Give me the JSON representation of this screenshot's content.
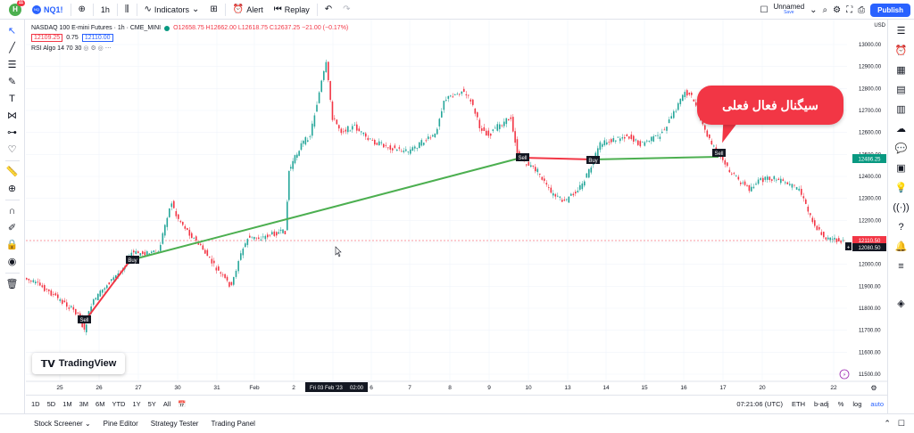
{
  "topbar": {
    "avatar_letter": "H",
    "avatar_badge": "11",
    "symbol_icon": "NQ",
    "symbol": "NQ1!",
    "interval": "1h",
    "indicators_label": "Indicators",
    "alert_label": "Alert",
    "replay_label": "Replay",
    "layout_name": "Unnamed",
    "layout_status": "Save",
    "publish_label": "Publish"
  },
  "legend": {
    "title": "NASDAQ 100 E-mini Futures · 1h · CME_MINI",
    "ohlc": "O12658.75 H12662.00 L12618.75 C12637.25 −21.00 (−0.17%)",
    "bid": "12109.25",
    "spread": "0.75",
    "ask": "12110.00",
    "indicator": "RSI Algo 14 70 30"
  },
  "price_axis": {
    "currency": "USD",
    "ticks": [
      "13000.00",
      "12900.00",
      "12800.00",
      "12700.00",
      "12600.00",
      "12500.00",
      "12400.00",
      "12300.00",
      "12200.00",
      "12100.00",
      "12000.00",
      "11900.00",
      "11800.00",
      "11700.00",
      "11600.00",
      "11500.00"
    ],
    "tag_green": "12486.25",
    "tag_red": "12110.50",
    "tag_dark": "12080.50"
  },
  "time_axis": {
    "labels": [
      "25",
      "26",
      "27",
      "30",
      "31",
      "Feb",
      "2",
      "3",
      "6",
      "7",
      "8",
      "9",
      "10",
      "13",
      "14",
      "15",
      "16",
      "17",
      "20",
      "22"
    ],
    "cursor_label": "Fri 03 Feb '23",
    "cursor_time": "02:00"
  },
  "signals": {
    "bubble_text": "سیگنال فعال فعلی",
    "buy": "Buy",
    "sell": "Sell"
  },
  "watermark": "TradingView",
  "rangebar": {
    "ranges": [
      "1D",
      "5D",
      "1M",
      "3M",
      "6M",
      "YTD",
      "1Y",
      "5Y",
      "All"
    ],
    "clock": "07:21:06 (UTC)",
    "session": "ETH",
    "adj": "b-adj",
    "pct": "%",
    "log": "log",
    "auto": "auto"
  },
  "bottom_tabs": [
    "Stock Screener",
    "Pine Editor",
    "Strategy Tester",
    "Trading Panel"
  ],
  "colors": {
    "accent": "#2962ff",
    "up": "#26a69a",
    "down": "#f23645",
    "trend_green": "#4caf50"
  }
}
